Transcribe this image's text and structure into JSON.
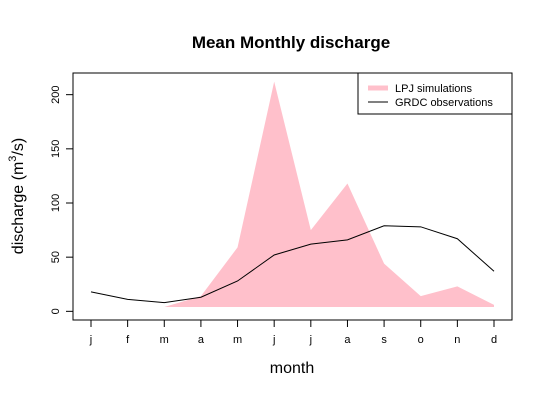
{
  "chart_data": {
    "type": "area",
    "title": "Mean Monthly discharge",
    "xlabel": "month",
    "ylabel": "discharge (m³/s)",
    "ylabel_main": "discharge (m",
    "ylabel_sup": "3",
    "ylabel_tail": "/s)",
    "categories": [
      "j",
      "f",
      "m",
      "a",
      "m",
      "j",
      "j",
      "a",
      "s",
      "o",
      "n",
      "d"
    ],
    "yticks": [
      0,
      50,
      100,
      150,
      200
    ],
    "ylim": [
      -8,
      220
    ],
    "grid": false,
    "legend_position": "top-right",
    "series": [
      {
        "name": "LPJ simulations",
        "style": "filled-area",
        "color": "#ffc0cb",
        "values": [
          4,
          4,
          4,
          14,
          59,
          212,
          75,
          118,
          44,
          14,
          23,
          6
        ]
      },
      {
        "name": "GRDC observations",
        "style": "line",
        "color": "#000000",
        "values": [
          18,
          11,
          8,
          13,
          28,
          52,
          62,
          66,
          79,
          78,
          67,
          37
        ]
      }
    ]
  }
}
